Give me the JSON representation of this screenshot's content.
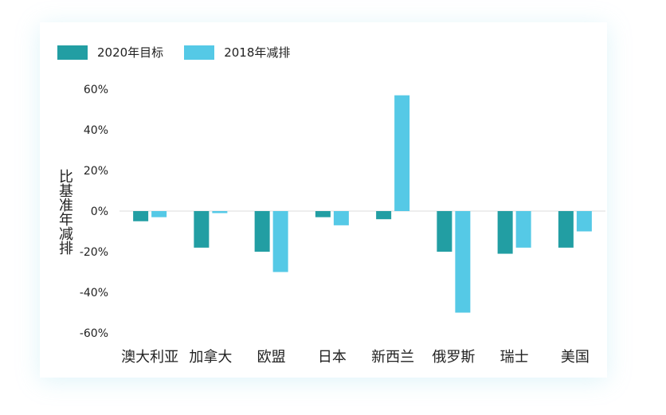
{
  "chart_data": {
    "type": "bar",
    "title": "",
    "xlabel": "",
    "ylabel": "比基准年减排",
    "categories": [
      "澳大利亚",
      "加拿大",
      "欧盟",
      "日本",
      "新西兰",
      "俄罗斯",
      "瑞士",
      "美国"
    ],
    "series": [
      {
        "name": "2020年目标",
        "color": "#229ea3",
        "values": [
          -5,
          -18,
          -20,
          -3,
          -4,
          -20,
          -21,
          -18
        ]
      },
      {
        "name": "2018年减排",
        "color": "#55c9e6",
        "values": [
          -3,
          -1,
          -30,
          -7,
          57,
          -50,
          -18,
          -10
        ]
      }
    ],
    "ylim": [
      -60,
      60
    ],
    "yticks": [
      "60%",
      "40%",
      "20%",
      "0%",
      "-20%",
      "-40%",
      "-60%"
    ],
    "ytick_values": [
      60,
      40,
      20,
      0,
      -20,
      -40,
      -60
    ],
    "legend_position": "top-left",
    "grid": false
  }
}
